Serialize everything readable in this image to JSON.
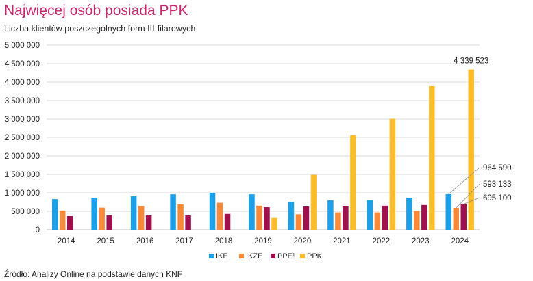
{
  "title": "Najwięcej osób posiada PPK",
  "subtitle": "Liczba klientów poszczególnych form III-filarowych",
  "source": "Źródło: Analizy Online na podstawie danych KNF",
  "chart_data": {
    "type": "bar",
    "categories": [
      "2014",
      "2015",
      "2016",
      "2017",
      "2018",
      "2019",
      "2020",
      "2021",
      "2022",
      "2023",
      "2024"
    ],
    "series": [
      {
        "name": "IKE",
        "color": "#1ea0e8",
        "values": [
          830000,
          870000,
          910000,
          960000,
          1000000,
          960000,
          750000,
          800000,
          800000,
          870000,
          964590
        ]
      },
      {
        "name": "IKZE",
        "color": "#f7893a",
        "values": [
          520000,
          600000,
          640000,
          690000,
          730000,
          650000,
          420000,
          470000,
          470000,
          510000,
          593133
        ]
      },
      {
        "name": "PPE¹",
        "color": "#a0104e",
        "values": [
          370000,
          390000,
          390000,
          390000,
          430000,
          610000,
          630000,
          630000,
          650000,
          670000,
          695100
        ]
      },
      {
        "name": "PPK",
        "color": "#fcbd2c",
        "values": [
          0,
          0,
          0,
          0,
          0,
          320000,
          1490000,
          2560000,
          3010000,
          3890000,
          4339523
        ]
      }
    ],
    "ylim": [
      0,
      5000000
    ],
    "yticks": [
      "0",
      "500 000",
      "1 000 000",
      "1 500 000",
      "2 000 000",
      "2 500 000",
      "3 000 000",
      "3 500 000",
      "4 000 000",
      "4 500 000",
      "5 000 000"
    ],
    "grid": true,
    "legend": "bottom-center",
    "data_labels": {
      "top": {
        "series": "PPK",
        "category": "2024",
        "text": "4 339 523"
      },
      "callouts": [
        {
          "series": "IKE",
          "category": "2024",
          "text": "964 590"
        },
        {
          "series": "IKZE",
          "category": "2024",
          "text": "593 133"
        },
        {
          "series": "PPE¹",
          "category": "2024",
          "text": "695 100"
        }
      ]
    }
  }
}
